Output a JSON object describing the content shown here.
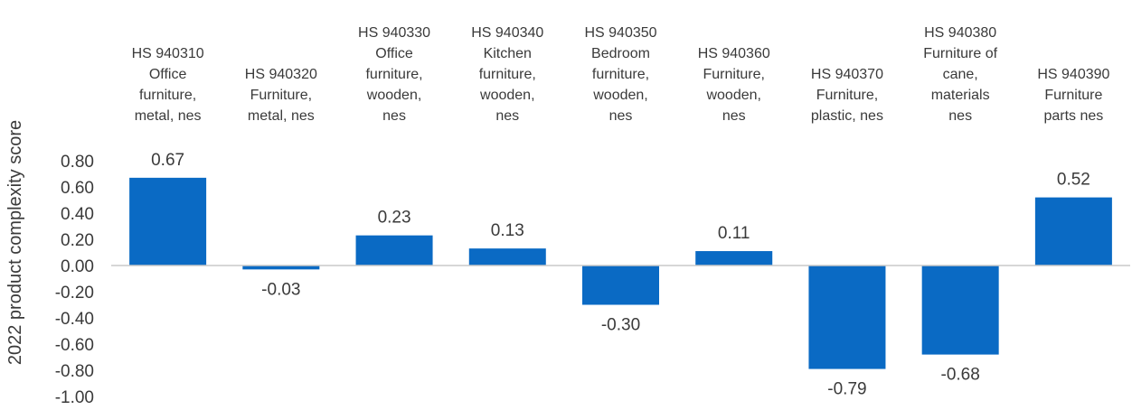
{
  "colors": {
    "bar": "#0a6ac4",
    "axis": "#c8c8c8",
    "text": "#3a3a3a"
  },
  "chart_data": {
    "type": "bar",
    "title": "",
    "xlabel": "",
    "ylabel": "2022 product complexity score",
    "ylim": [
      -1.0,
      0.8
    ],
    "yticks": [
      "0.80",
      "0.60",
      "0.40",
      "0.20",
      "0.00",
      "-0.20",
      "-0.40",
      "-0.60",
      "-0.80",
      "-1.00"
    ],
    "categories": [
      [
        "HS 940310",
        "Office",
        "furniture,",
        "metal, nes"
      ],
      [
        "HS 940320",
        "Furniture,",
        "metal, nes"
      ],
      [
        "HS 940330",
        "Office",
        "furniture,",
        "wooden,",
        "nes"
      ],
      [
        "HS 940340",
        "Kitchen",
        "furniture,",
        "wooden,",
        "nes"
      ],
      [
        "HS 940350",
        "Bedroom",
        "furniture,",
        "wooden,",
        "nes"
      ],
      [
        "HS 940360",
        "Furniture,",
        "wooden,",
        "nes"
      ],
      [
        "HS 940370",
        "Furniture,",
        "plastic, nes"
      ],
      [
        "HS 940380",
        "Furniture of",
        "cane,",
        "materials",
        "nes"
      ],
      [
        "HS 940390",
        "Furniture",
        "parts nes"
      ]
    ],
    "values": [
      0.67,
      -0.03,
      0.23,
      0.13,
      -0.3,
      0.11,
      -0.79,
      -0.68,
      0.52
    ],
    "value_labels": [
      "0.67",
      "-0.03",
      "0.23",
      "0.13",
      "-0.30",
      "0.11",
      "-0.79",
      "-0.68",
      "0.52"
    ],
    "grid": false,
    "legend": "none"
  }
}
